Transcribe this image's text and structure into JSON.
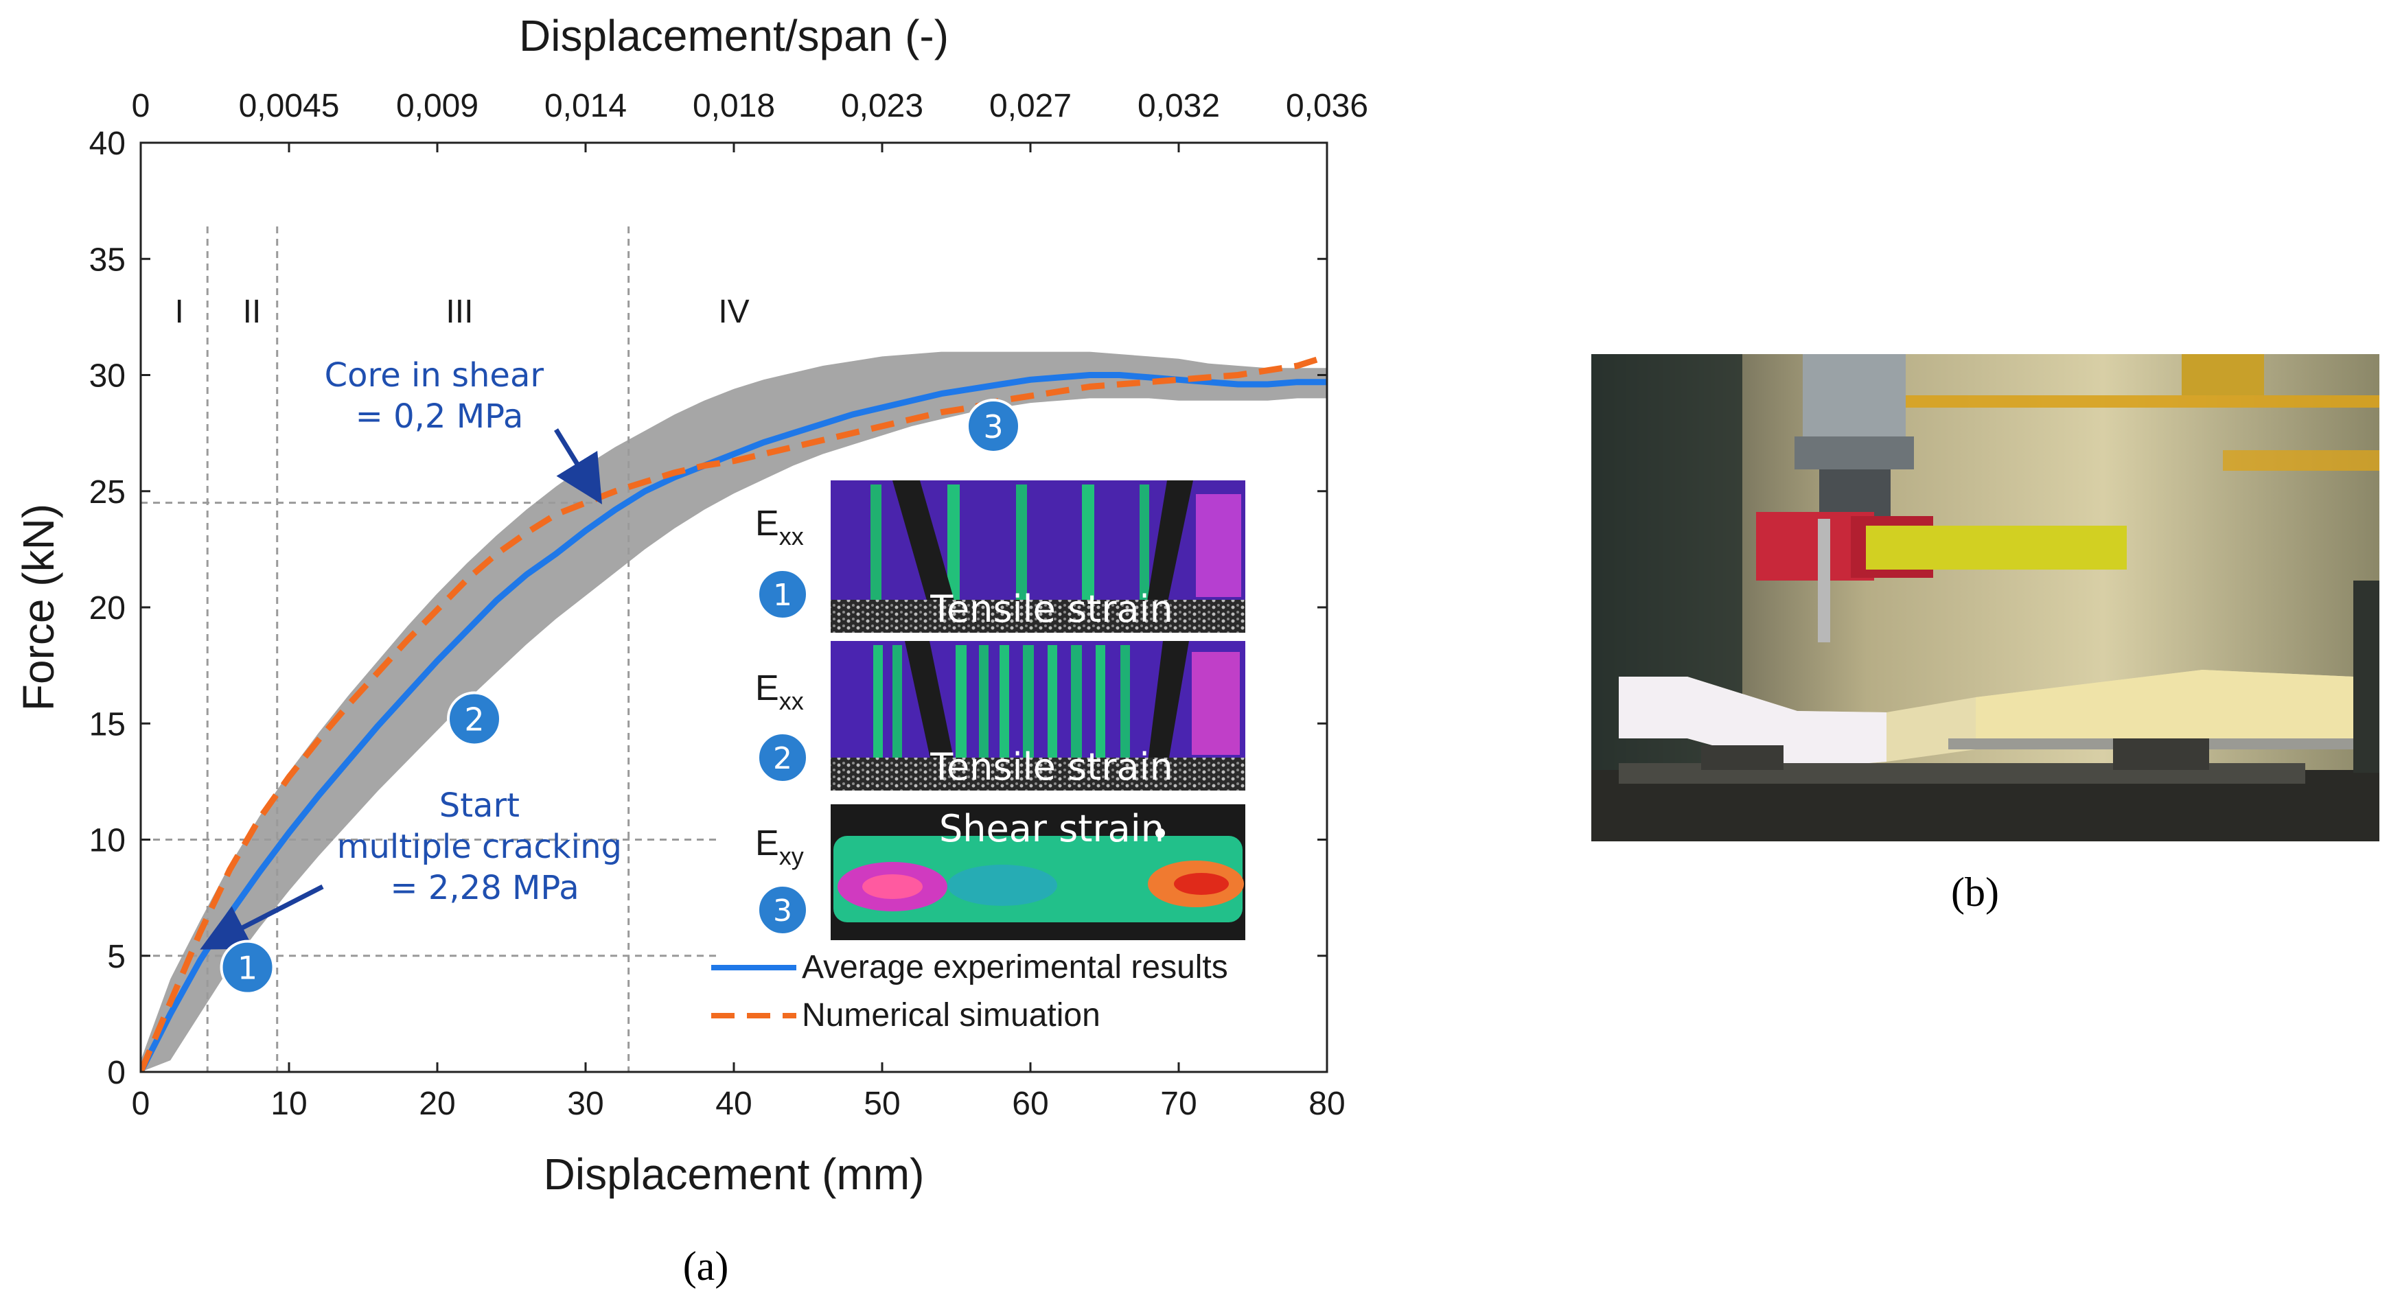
{
  "chart_data": {
    "type": "line",
    "xlabel": "Displacement (mm)",
    "ylabel": "Force (kN)",
    "top_xlabel": "Displacement/span (-)",
    "xlim": [
      0,
      80
    ],
    "ylim": [
      0,
      40
    ],
    "xticks": [
      0,
      10,
      20,
      30,
      40,
      50,
      60,
      70,
      80
    ],
    "yticks": [
      0,
      5,
      10,
      15,
      20,
      25,
      30,
      35,
      40
    ],
    "top_xticks": [
      {
        "x": 0,
        "label": "0"
      },
      {
        "x": 10,
        "label": "0,0045"
      },
      {
        "x": 20,
        "label": "0,009"
      },
      {
        "x": 30,
        "label": "0,014"
      },
      {
        "x": 40,
        "label": "0,018"
      },
      {
        "x": 50,
        "label": "0,023"
      },
      {
        "x": 60,
        "label": "0,027"
      },
      {
        "x": 70,
        "label": "0,032"
      },
      {
        "x": 80,
        "label": "0,036"
      }
    ],
    "regions": [
      {
        "label": "I",
        "x_mid": 2.6
      },
      {
        "label": "II",
        "x_mid": 7.5
      },
      {
        "label": "III",
        "x_mid": 21.5
      },
      {
        "label": "IV",
        "x_mid": 40
      }
    ],
    "region_bounds_x": [
      4.5,
      9.2,
      32.9
    ],
    "reference_y": [
      5,
      10,
      24.5
    ],
    "series": [
      {
        "name": "Average experimental results",
        "color": "#1f78e8",
        "style": "solid",
        "x": [
          0,
          2,
          4,
          6,
          8,
          10,
          12,
          14,
          16,
          18,
          20,
          22,
          24,
          26,
          28,
          30,
          32,
          34,
          36,
          38,
          40,
          42,
          44,
          46,
          48,
          50,
          52,
          54,
          56,
          58,
          60,
          62,
          64,
          66,
          68,
          70,
          72,
          74,
          76,
          78,
          80
        ],
        "values": [
          0,
          2.5,
          4.8,
          6.8,
          8.6,
          10.3,
          11.9,
          13.4,
          14.9,
          16.3,
          17.7,
          19.0,
          20.3,
          21.4,
          22.3,
          23.3,
          24.2,
          25.0,
          25.6,
          26.1,
          26.6,
          27.1,
          27.5,
          27.9,
          28.3,
          28.6,
          28.9,
          29.2,
          29.4,
          29.6,
          29.8,
          29.9,
          30.0,
          30.0,
          29.9,
          29.8,
          29.7,
          29.6,
          29.6,
          29.7,
          29.7
        ]
      },
      {
        "name": "Numerical simuation",
        "color": "#f26b1f",
        "style": "dashed",
        "x": [
          0,
          2,
          4,
          6,
          8,
          10,
          12,
          14,
          16,
          18,
          20,
          22,
          24,
          26,
          28,
          30,
          32,
          34,
          36,
          38,
          40,
          42,
          44,
          46,
          48,
          50,
          52,
          54,
          56,
          58,
          60,
          62,
          64,
          66,
          68,
          70,
          72,
          74,
          76,
          78,
          80
        ],
        "values": [
          0,
          3.0,
          6.0,
          8.7,
          10.9,
          12.7,
          14.3,
          15.8,
          17.2,
          18.6,
          19.9,
          21.2,
          22.3,
          23.2,
          24.0,
          24.5,
          25.0,
          25.4,
          25.8,
          26.1,
          26.3,
          26.6,
          26.9,
          27.2,
          27.5,
          27.8,
          28.1,
          28.4,
          28.6,
          28.9,
          29.1,
          29.3,
          29.5,
          29.6,
          29.7,
          29.8,
          29.9,
          30.0,
          30.2,
          30.4,
          30.8
        ]
      }
    ],
    "band": {
      "x": [
        0,
        2,
        4,
        6,
        8,
        10,
        12,
        14,
        16,
        18,
        20,
        22,
        24,
        26,
        28,
        30,
        32,
        34,
        36,
        38,
        40,
        42,
        44,
        46,
        48,
        50,
        52,
        54,
        56,
        58,
        60,
        62,
        64,
        66,
        68,
        70,
        72,
        74,
        76,
        78,
        80
      ],
      "upper": [
        0.5,
        4.0,
        6.5,
        8.9,
        11.0,
        12.9,
        14.6,
        16.2,
        17.7,
        19.2,
        20.6,
        21.9,
        23.1,
        24.2,
        25.2,
        26.1,
        26.9,
        27.6,
        28.3,
        28.9,
        29.4,
        29.8,
        30.1,
        30.4,
        30.6,
        30.8,
        30.9,
        31.0,
        31.0,
        31.0,
        31.0,
        31.0,
        31.0,
        30.9,
        30.8,
        30.7,
        30.5,
        30.4,
        30.3,
        30.3,
        30.3
      ],
      "lower": [
        0,
        0.5,
        2.5,
        4.5,
        6.2,
        7.8,
        9.3,
        10.7,
        12.1,
        13.4,
        14.7,
        16.0,
        17.2,
        18.4,
        19.5,
        20.5,
        21.5,
        22.5,
        23.4,
        24.2,
        24.9,
        25.5,
        26.1,
        26.6,
        27.0,
        27.4,
        27.8,
        28.1,
        28.4,
        28.6,
        28.8,
        28.9,
        29.0,
        29.0,
        29.0,
        28.9,
        28.9,
        28.9,
        28.9,
        29.0,
        29.0
      ]
    },
    "markers": [
      {
        "label": "1",
        "x": 7.2,
        "y": 4.5
      },
      {
        "label": "2",
        "x": 22.5,
        "y": 15.2
      },
      {
        "label": "3",
        "x": 57.5,
        "y": 27.8
      }
    ],
    "annotations": [
      {
        "lines": [
          "Core in shear",
          "= 0,2 MPa"
        ]
      },
      {
        "lines": [
          "Start",
          "multiple cracking",
          "= 2,28 MPa"
        ]
      }
    ],
    "legend": {
      "placement": "lower-right",
      "entries": [
        "Average experimental results",
        "Numerical simuation"
      ]
    },
    "insets": [
      {
        "symbol": "E",
        "subscript": "xx",
        "marker": "1",
        "caption": "Tensile strain"
      },
      {
        "symbol": "E",
        "subscript": "xx",
        "marker": "2",
        "caption": "Tensile strain"
      },
      {
        "symbol": "E",
        "subscript": "xy",
        "marker": "3",
        "caption": "Shear strain"
      }
    ],
    "colors": {
      "band": "#a6a6a6",
      "marker": "#2a7fd0",
      "grid_ref": "#9a9a9a"
    }
  },
  "panels": {
    "a_label": "(a)",
    "b_label": "(b)"
  }
}
